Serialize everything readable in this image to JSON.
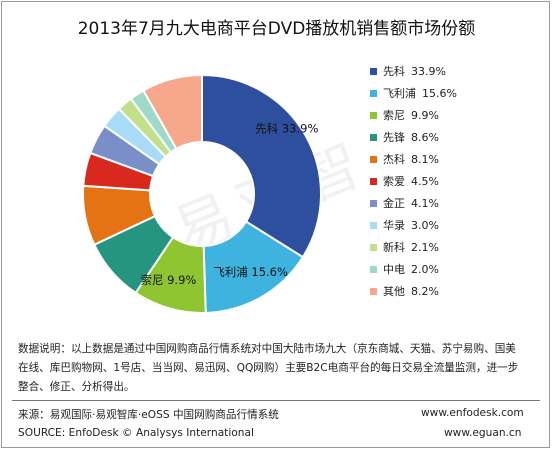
{
  "title": "2013年7月九大电商平台DVD播放机销售额市场份额",
  "watermark": "易观智",
  "chart_data": {
    "type": "pie",
    "donut": true,
    "legend_position": "right",
    "slices": [
      {
        "label": "先科",
        "value": 33.9,
        "color": "#2e4f9e",
        "label_text": "先科  33.9%"
      },
      {
        "label": "飞利浦",
        "value": 15.6,
        "color": "#3eb3e0",
        "label_text": "飞利浦  15.6%"
      },
      {
        "label": "索尼",
        "value": 9.9,
        "color": "#8fc531",
        "label_text": "索尼  9.9%"
      },
      {
        "label": "先锋",
        "value": 8.6,
        "color": "#26957f",
        "label_text": ""
      },
      {
        "label": "杰科",
        "value": 8.1,
        "color": "#e57213",
        "label_text": ""
      },
      {
        "label": "索爱",
        "value": 4.5,
        "color": "#d9291f",
        "label_text": ""
      },
      {
        "label": "金正",
        "value": 4.1,
        "color": "#7a8fc8",
        "label_text": ""
      },
      {
        "label": "华录",
        "value": 3.0,
        "color": "#a8dcf6",
        "label_text": ""
      },
      {
        "label": "新科",
        "value": 2.1,
        "color": "#c2e08a",
        "label_text": ""
      },
      {
        "label": "中电",
        "value": 2.0,
        "color": "#9ed9c9",
        "label_text": ""
      },
      {
        "label": "其他",
        "value": 8.2,
        "color": "#f6a78c",
        "label_text": ""
      }
    ],
    "legend": [
      {
        "name": "先科",
        "value": "33.9%"
      },
      {
        "name": "飞利浦",
        "value": "15.6%"
      },
      {
        "name": "索尼",
        "value": "9.9%"
      },
      {
        "name": "先锋",
        "value": "8.6%"
      },
      {
        "name": "杰科",
        "value": "8.1%"
      },
      {
        "name": "索爱",
        "value": "4.5%"
      },
      {
        "name": "金正",
        "value": "4.1%"
      },
      {
        "name": "华录",
        "value": "3.0%"
      },
      {
        "name": "新科",
        "value": "2.1%"
      },
      {
        "name": "中电",
        "value": "2.0%"
      },
      {
        "name": "其他",
        "value": "8.2%"
      }
    ]
  },
  "note": {
    "line1": "数据说明：以上数据是通过中国网购商品行情系统对中国大陆市场九大（京东商城、天猫、苏宁易购、国美",
    "line2": "在线、库巴购物网、1号店、当当网、易迅网、QQ网购）主要B2C电商平台的每日交易全流量监测，进一步",
    "line3": "整合、修正、分析得出。"
  },
  "footer": {
    "source_cn": "来源：易观国际·易观智库·eOSS 中国网购商品行情系统",
    "source_en": "SOURCE: EnfoDesk © Analysys International",
    "url1": "www.enfodesk.com",
    "url2": "www.eguan.cn"
  }
}
